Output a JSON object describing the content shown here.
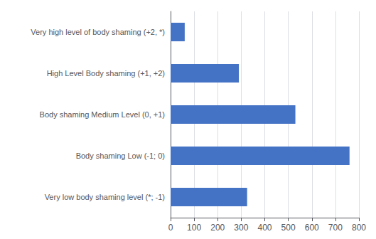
{
  "chart_data": {
    "type": "bar",
    "orientation": "horizontal",
    "categories": [
      "Very low body shaming level (*; -1)",
      "Body shaming Low (-1; 0)",
      "Body shaming Medium Level (0, +1)",
      "High Level Body shaming (+1, +2)",
      "Very high level of body shaming (+2, *)"
    ],
    "values": [
      325,
      760,
      530,
      290,
      60
    ],
    "color": "#4472C4",
    "xlim": [
      0,
      800
    ],
    "xticks": [
      0,
      100,
      200,
      300,
      400,
      500,
      600,
      700,
      800
    ],
    "grid": true
  }
}
